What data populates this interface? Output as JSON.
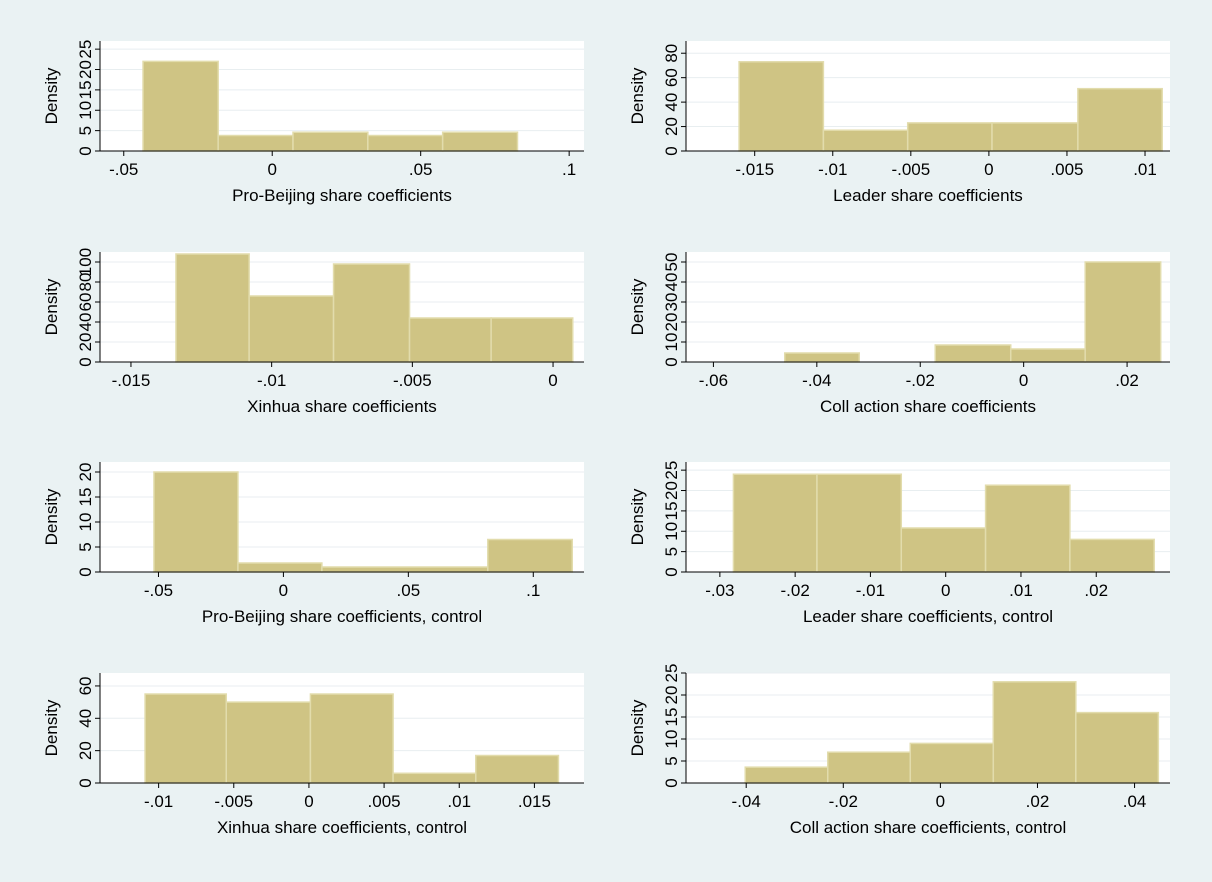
{
  "colors": {
    "background": "#eaf2f3",
    "plot_area": "#ffffff",
    "gridline": "#e8eef0",
    "bar_fill": "#cfc484",
    "bar_edge": "#e2dcac",
    "axis": "#000000"
  },
  "chart_data": [
    {
      "type": "bar",
      "title": "",
      "xlabel": "Pro-Beijing share coefficients",
      "ylabel": "Density",
      "xlim": [
        -0.058,
        0.105
      ],
      "ylim": [
        0,
        27
      ],
      "xticks": [
        -0.05,
        0,
        0.05,
        0.1
      ],
      "xtick_labels": [
        "-.05",
        "0",
        ".05",
        ".1"
      ],
      "yticks": [
        0,
        5,
        10,
        15,
        20,
        25
      ],
      "ytick_labels": [
        "0",
        "5",
        "10",
        "15",
        "20",
        "25"
      ],
      "grid": true,
      "bins": [
        {
          "x0": -0.0435,
          "x1": -0.0182,
          "density": 22
        },
        {
          "x0": -0.0182,
          "x1": 0.007,
          "density": 3.8
        },
        {
          "x0": 0.007,
          "x1": 0.0322,
          "density": 4.6
        },
        {
          "x0": 0.0322,
          "x1": 0.0574,
          "density": 3.8
        },
        {
          "x0": 0.0574,
          "x1": 0.0826,
          "density": 4.6
        }
      ]
    },
    {
      "type": "bar",
      "title": "",
      "xlabel": "Leader share coefficients",
      "ylabel": "Density",
      "xlim": [
        -0.0194,
        0.0116
      ],
      "ylim": [
        0,
        90
      ],
      "xticks": [
        -0.015,
        -0.01,
        -0.005,
        0,
        0.005,
        0.01
      ],
      "xtick_labels": [
        "-.015",
        "-.01",
        "-.005",
        "0",
        ".005",
        ".01"
      ],
      "yticks": [
        0,
        20,
        40,
        60,
        80
      ],
      "ytick_labels": [
        "0",
        "20",
        "40",
        "60",
        "80"
      ],
      "grid": true,
      "bins": [
        {
          "x0": -0.016,
          "x1": -0.0106,
          "density": 73
        },
        {
          "x0": -0.0106,
          "x1": -0.0052,
          "density": 17
        },
        {
          "x0": -0.0052,
          "x1": 0.0002,
          "density": 23
        },
        {
          "x0": 0.0002,
          "x1": 0.0057,
          "density": 23
        },
        {
          "x0": 0.0057,
          "x1": 0.0111,
          "density": 51
        }
      ]
    },
    {
      "type": "bar",
      "title": "",
      "xlabel": "Xinhua share coefficients",
      "ylabel": "Density",
      "xlim": [
        -0.0161,
        0.0011
      ],
      "ylim": [
        0,
        110
      ],
      "xticks": [
        -0.015,
        -0.01,
        -0.005,
        0
      ],
      "xtick_labels": [
        "-.015",
        "-.01",
        "-.005",
        "0"
      ],
      "yticks": [
        0,
        20,
        40,
        60,
        80,
        100
      ],
      "ytick_labels": [
        "0",
        "20",
        "40",
        "60",
        "80",
        "100"
      ],
      "grid": true,
      "bins": [
        {
          "x0": -0.0134,
          "x1": -0.0108,
          "density": 108
        },
        {
          "x0": -0.0108,
          "x1": -0.0078,
          "density": 66
        },
        {
          "x0": -0.0078,
          "x1": -0.0051,
          "density": 98
        },
        {
          "x0": -0.0051,
          "x1": -0.0022,
          "density": 44
        },
        {
          "x0": -0.0022,
          "x1": 0.0007,
          "density": 44
        }
      ]
    },
    {
      "type": "bar",
      "title": "",
      "xlabel": "Coll action share coefficients",
      "ylabel": "Density",
      "xlim": [
        -0.0653,
        0.0283
      ],
      "ylim": [
        0,
        55
      ],
      "xticks": [
        -0.06,
        -0.04,
        -0.02,
        0,
        0.02
      ],
      "xtick_labels": [
        "-.06",
        "-.04",
        "-.02",
        "0",
        ".02"
      ],
      "yticks": [
        0,
        10,
        20,
        30,
        40,
        50
      ],
      "ytick_labels": [
        "0",
        "10",
        "20",
        "30",
        "40",
        "50"
      ],
      "grid": true,
      "bins": [
        {
          "x0": -0.0462,
          "x1": -0.0318,
          "density": 4.5
        },
        {
          "x0": -0.0171,
          "x1": -0.0025,
          "density": 8.5
        },
        {
          "x0": -0.0025,
          "x1": 0.0119,
          "density": 6.5
        },
        {
          "x0": 0.0119,
          "x1": 0.0265,
          "density": 50
        }
      ]
    },
    {
      "type": "bar",
      "title": "",
      "xlabel": "Pro-Beijing share coefficients, control",
      "ylabel": "Density",
      "xlim": [
        -0.0734,
        0.1203
      ],
      "ylim": [
        0,
        22
      ],
      "xticks": [
        -0.05,
        0,
        0.05,
        0.1
      ],
      "xtick_labels": [
        "-.05",
        "0",
        ".05",
        ".1"
      ],
      "yticks": [
        0,
        5,
        10,
        15,
        20
      ],
      "ytick_labels": [
        "0",
        "5",
        "10",
        "15",
        "20"
      ],
      "grid": true,
      "bins": [
        {
          "x0": -0.0518,
          "x1": -0.0182,
          "density": 20
        },
        {
          "x0": -0.0182,
          "x1": 0.0154,
          "density": 1.8
        },
        {
          "x0": 0.0154,
          "x1": 0.0818,
          "density": 1
        },
        {
          "x0": 0.0818,
          "x1": 0.1156,
          "density": 6.5
        }
      ]
    },
    {
      "type": "bar",
      "title": "",
      "xlabel": "Leader share coefficients, control",
      "ylabel": "Density",
      "xlim": [
        -0.0345,
        0.0298
      ],
      "ylim": [
        0,
        27
      ],
      "xticks": [
        -0.03,
        -0.02,
        -0.01,
        0,
        0.01,
        0.02
      ],
      "xtick_labels": [
        "-.03",
        "-.02",
        "-.01",
        "0",
        ".01",
        ".02"
      ],
      "yticks": [
        0,
        5,
        10,
        15,
        20,
        25
      ],
      "ytick_labels": [
        "0",
        "5",
        "10",
        "15",
        "20",
        "25"
      ],
      "grid": true,
      "bins": [
        {
          "x0": -0.0282,
          "x1": -0.0171,
          "density": 24
        },
        {
          "x0": -0.0171,
          "x1": -0.0059,
          "density": 24
        },
        {
          "x0": -0.0059,
          "x1": 0.0053,
          "density": 10.8
        },
        {
          "x0": 0.0053,
          "x1": 0.0165,
          "density": 21.3
        },
        {
          "x0": 0.0165,
          "x1": 0.0277,
          "density": 8
        }
      ]
    },
    {
      "type": "bar",
      "title": "",
      "xlabel": "Xinhua share coefficients, control",
      "ylabel": "Density",
      "xlim": [
        -0.0139,
        0.0183
      ],
      "ylim": [
        0,
        68
      ],
      "xticks": [
        -0.01,
        -0.005,
        0,
        0.005,
        0.01,
        0.015
      ],
      "xtick_labels": [
        "-.01",
        "-.005",
        "0",
        ".005",
        ".01",
        ".015"
      ],
      "yticks": [
        0,
        20,
        40,
        60
      ],
      "ytick_labels": [
        "0",
        "20",
        "40",
        "60"
      ],
      "grid": true,
      "bins": [
        {
          "x0": -0.0109,
          "x1": -0.0055,
          "density": 55
        },
        {
          "x0": -0.0055,
          "x1": 0.0001,
          "density": 50
        },
        {
          "x0": 0.0001,
          "x1": 0.0056,
          "density": 55
        },
        {
          "x0": 0.0056,
          "x1": 0.0111,
          "density": 6
        },
        {
          "x0": 0.0111,
          "x1": 0.0166,
          "density": 17
        }
      ]
    },
    {
      "type": "bar",
      "title": "",
      "xlabel": "Coll action share coefficients, control",
      "ylabel": "Density",
      "xlim": [
        -0.0524,
        0.0473
      ],
      "ylim": [
        0,
        25
      ],
      "xticks": [
        -0.04,
        -0.02,
        0,
        0.02,
        0.04
      ],
      "xtick_labels": [
        "-.04",
        "-.02",
        "0",
        ".02",
        ".04"
      ],
      "yticks": [
        0,
        5,
        10,
        15,
        20,
        25
      ],
      "ytick_labels": [
        "0",
        "5",
        "10",
        "15",
        "20",
        "25"
      ],
      "grid": true,
      "bins": [
        {
          "x0": -0.0402,
          "x1": -0.0232,
          "density": 3.6
        },
        {
          "x0": -0.0232,
          "x1": -0.0062,
          "density": 7
        },
        {
          "x0": -0.0062,
          "x1": 0.0109,
          "density": 9
        },
        {
          "x0": 0.0109,
          "x1": 0.0279,
          "density": 23
        },
        {
          "x0": 0.0279,
          "x1": 0.0449,
          "density": 16
        }
      ]
    }
  ]
}
